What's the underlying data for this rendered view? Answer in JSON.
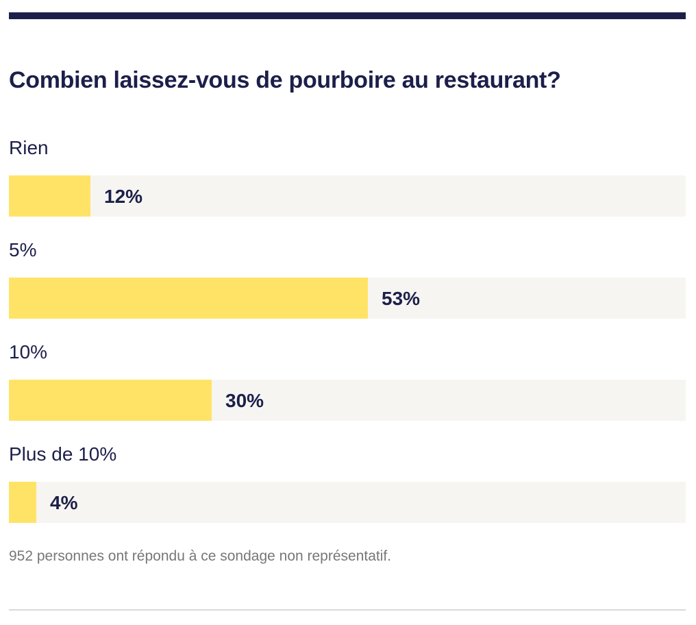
{
  "chart_data": {
    "type": "bar",
    "orientation": "horizontal",
    "title": "Combien laissez-vous de pourboire au restaurant?",
    "categories": [
      "Rien",
      "5%",
      "10%",
      "Plus de 10%"
    ],
    "values": [
      12,
      53,
      30,
      4
    ],
    "value_labels": [
      "12%",
      "53%",
      "30%",
      "4%"
    ],
    "unit": "%",
    "xlim": [
      0,
      100
    ],
    "grid": false,
    "legend": "none"
  },
  "note": "952 personnes ont répondu à ce sondage non représentatif.",
  "colors": {
    "bar_fill": "#ffe366",
    "bar_track": "#f6f5f1",
    "text": "#1c1f4a",
    "rule": "#1c1f4a",
    "note": "#777777"
  }
}
